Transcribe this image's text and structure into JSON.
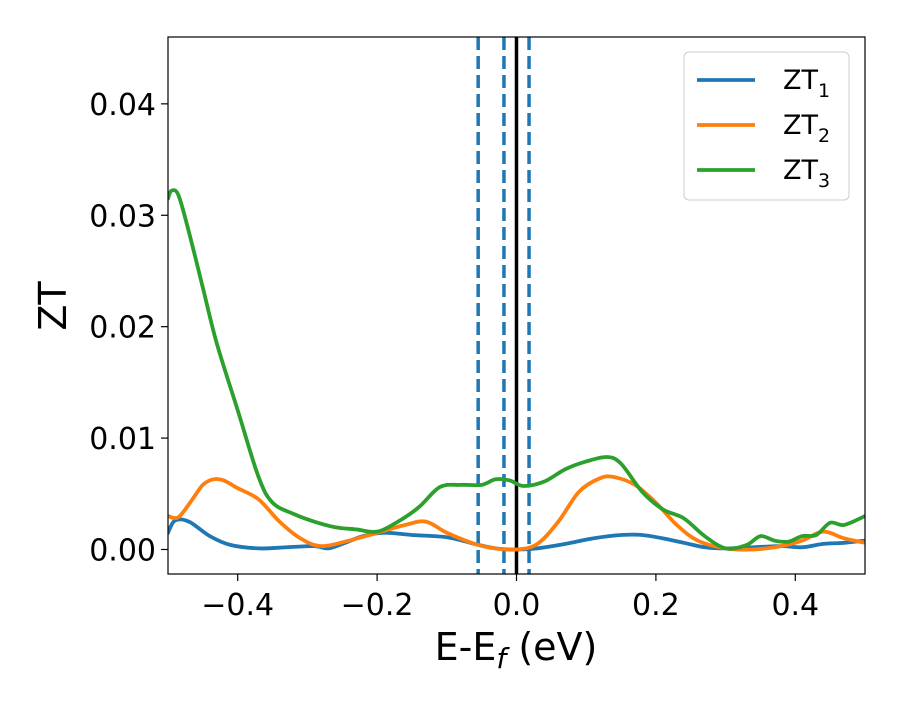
{
  "chart_data": {
    "type": "line",
    "title": "",
    "xlabel": {
      "main": "E-E",
      "sub": "f",
      "unit": " (eV)"
    },
    "ylabel": "ZT",
    "xlim": [
      -0.5,
      0.5
    ],
    "ylim": [
      -0.0022,
      0.046
    ],
    "xticks": [
      -0.4,
      -0.2,
      0.0,
      0.2,
      0.4
    ],
    "xtick_labels": [
      "−0.4",
      "−0.2",
      "0.0",
      "0.2",
      "0.4"
    ],
    "yticks": [
      0.0,
      0.01,
      0.02,
      0.03,
      0.04
    ],
    "ytick_labels": [
      "0.00",
      "0.01",
      "0.02",
      "0.03",
      "0.04"
    ],
    "grid": false,
    "legend_position": "top-right",
    "vlines": [
      {
        "x": -0.055,
        "style": "dashed",
        "color": "#1f77b4"
      },
      {
        "x": -0.018,
        "style": "dashed",
        "color": "#1f77b4"
      },
      {
        "x": 0.018,
        "style": "dashed",
        "color": "#1f77b4"
      },
      {
        "x": 0.0,
        "style": "solid",
        "color": "#000000"
      }
    ],
    "series": [
      {
        "name": "ZT",
        "sub": "1",
        "color": "#1f77b4",
        "x": [
          -0.5,
          -0.49,
          -0.47,
          -0.44,
          -0.41,
          -0.37,
          -0.33,
          -0.29,
          -0.27,
          -0.25,
          -0.22,
          -0.19,
          -0.15,
          -0.1,
          -0.06,
          -0.03,
          0.0,
          0.03,
          0.07,
          0.11,
          0.15,
          0.18,
          0.21,
          0.24,
          0.27,
          0.3,
          0.34,
          0.38,
          0.41,
          0.44,
          0.47,
          0.5
        ],
        "y": [
          0.0015,
          0.0026,
          0.0025,
          0.0012,
          0.0004,
          0.0001,
          0.0002,
          0.0003,
          0.0001,
          0.0005,
          0.0012,
          0.0015,
          0.0013,
          0.0011,
          0.0005,
          0.0001,
          0.0,
          0.0001,
          0.0005,
          0.001,
          0.0013,
          0.0013,
          0.001,
          0.0006,
          0.0002,
          0.0001,
          0.0002,
          0.0003,
          0.0002,
          0.0005,
          0.0006,
          0.0008
        ]
      },
      {
        "name": "ZT",
        "sub": "2",
        "color": "#ff7f0e",
        "x": [
          -0.5,
          -0.485,
          -0.465,
          -0.45,
          -0.435,
          -0.42,
          -0.4,
          -0.37,
          -0.34,
          -0.31,
          -0.28,
          -0.24,
          -0.2,
          -0.16,
          -0.13,
          -0.1,
          -0.06,
          -0.03,
          0.0,
          0.03,
          0.06,
          0.09,
          0.12,
          0.14,
          0.17,
          0.2,
          0.23,
          0.26,
          0.3,
          0.34,
          0.38,
          0.41,
          0.44,
          0.47,
          0.5
        ],
        "y": [
          0.003,
          0.0029,
          0.0045,
          0.0058,
          0.0063,
          0.0062,
          0.0055,
          0.0045,
          0.0025,
          0.001,
          0.0003,
          0.0008,
          0.0015,
          0.0022,
          0.0025,
          0.0015,
          0.0005,
          0.0001,
          0.0,
          0.0005,
          0.0025,
          0.0052,
          0.0064,
          0.0065,
          0.0058,
          0.0042,
          0.0022,
          0.0008,
          0.0001,
          0.0,
          0.0003,
          0.0008,
          0.0016,
          0.001,
          0.0006
        ]
      },
      {
        "name": "ZT",
        "sub": "3",
        "color": "#2ca02c",
        "x": [
          -0.5,
          -0.495,
          -0.485,
          -0.47,
          -0.45,
          -0.43,
          -0.4,
          -0.37,
          -0.35,
          -0.32,
          -0.29,
          -0.26,
          -0.23,
          -0.2,
          -0.17,
          -0.14,
          -0.11,
          -0.08,
          -0.05,
          -0.03,
          -0.01,
          0.01,
          0.04,
          0.07,
          0.1,
          0.13,
          0.15,
          0.18,
          0.21,
          0.24,
          0.27,
          0.3,
          0.33,
          0.35,
          0.37,
          0.39,
          0.41,
          0.43,
          0.45,
          0.47,
          0.5
        ],
        "y": [
          0.0315,
          0.0322,
          0.0318,
          0.0285,
          0.0235,
          0.0185,
          0.0125,
          0.0065,
          0.0042,
          0.0032,
          0.0025,
          0.002,
          0.0018,
          0.0016,
          0.0025,
          0.0038,
          0.0056,
          0.0058,
          0.0058,
          0.0063,
          0.0062,
          0.0057,
          0.0061,
          0.0072,
          0.0079,
          0.0083,
          0.0077,
          0.0052,
          0.0036,
          0.0028,
          0.0012,
          0.0001,
          0.0004,
          0.0012,
          0.0008,
          0.0007,
          0.0012,
          0.0013,
          0.0024,
          0.0022,
          0.003
        ]
      }
    ]
  }
}
